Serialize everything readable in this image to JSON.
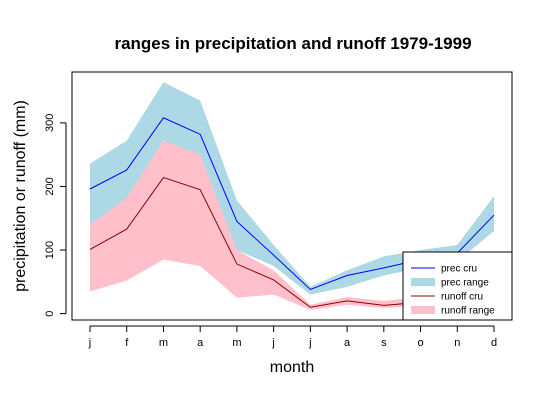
{
  "chart_data": {
    "type": "area",
    "title": "ranges in precipitation and runoff 1979-1999",
    "xlabel": "month",
    "ylabel": "precipitation or runoff (mm)",
    "categories": [
      "j",
      "f",
      "m",
      "a",
      "m",
      "j",
      "j",
      "a",
      "s",
      "o",
      "n",
      "d"
    ],
    "yticks": [
      0,
      100,
      200,
      300
    ],
    "ylim": [
      -10,
      380
    ],
    "grid": false,
    "legend_position": "bottom-right",
    "series": [
      {
        "name": "prec cru",
        "kind": "line",
        "color": "#0000ff",
        "values": [
          196,
          226,
          308,
          282,
          145,
          92,
          38,
          60,
          72,
          85,
          95,
          155
        ]
      },
      {
        "name": "prec range",
        "kind": "band",
        "color": "#add8e6",
        "upper": [
          236,
          272,
          364,
          335,
          178,
          108,
          42,
          68,
          90,
          100,
          108,
          185
        ],
        "lower": [
          140,
          180,
          272,
          248,
          100,
          75,
          30,
          42,
          60,
          72,
          82,
          130
        ]
      },
      {
        "name": "runoff cru",
        "kind": "line",
        "color": "#8b0000",
        "values": [
          101,
          133,
          214,
          195,
          78,
          53,
          10,
          20,
          13,
          18,
          20,
          25
        ]
      },
      {
        "name": "runoff range",
        "kind": "band",
        "color": "#ffc0cb",
        "upper": [
          140,
          182,
          272,
          250,
          100,
          68,
          14,
          26,
          20,
          26,
          28,
          33
        ],
        "lower": [
          35,
          52,
          85,
          75,
          25,
          30,
          6,
          14,
          9,
          12,
          14,
          18
        ]
      }
    ]
  }
}
